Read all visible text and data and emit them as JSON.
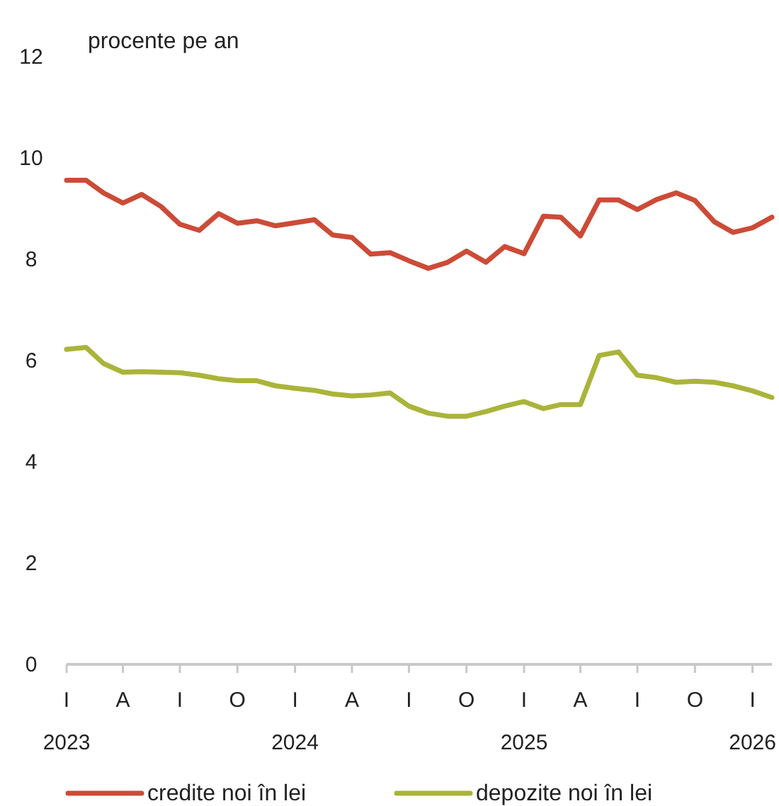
{
  "chart_data": {
    "type": "line",
    "ylabel": "procente pe an",
    "x": [
      "2023-01",
      "2023-02",
      "2023-03",
      "2023-04",
      "2023-05",
      "2023-06",
      "2023-07",
      "2023-08",
      "2023-09",
      "2023-10",
      "2023-11",
      "2023-12",
      "2024-01",
      "2024-02",
      "2024-03",
      "2024-04",
      "2024-05",
      "2024-06",
      "2024-07",
      "2024-08",
      "2024-09",
      "2024-10",
      "2024-11",
      "2024-12",
      "2025-01",
      "2025-02",
      "2025-03",
      "2025-04",
      "2025-05",
      "2025-06",
      "2025-07",
      "2025-08",
      "2025-09",
      "2025-10",
      "2025-11",
      "2025-12",
      "2026-01",
      "2026-02"
    ],
    "series": [
      {
        "name": "credite noi în lei",
        "color": "#cc4b37",
        "values": [
          9.56,
          9.56,
          9.31,
          9.11,
          9.28,
          9.04,
          8.69,
          8.57,
          8.9,
          8.71,
          8.76,
          8.66,
          8.72,
          8.78,
          8.48,
          8.43,
          8.1,
          8.13,
          7.97,
          7.82,
          7.94,
          8.16,
          7.94,
          8.25,
          8.11,
          8.85,
          8.83,
          8.46,
          9.17,
          9.17,
          8.98,
          9.18,
          9.31,
          9.16,
          8.74,
          8.53,
          8.62,
          8.83
        ]
      },
      {
        "name": "depozite noi în lei",
        "color": "#aab43a",
        "values": [
          6.22,
          6.26,
          5.94,
          5.77,
          5.78,
          5.77,
          5.76,
          5.71,
          5.64,
          5.6,
          5.6,
          5.5,
          5.45,
          5.41,
          5.34,
          5.3,
          5.32,
          5.36,
          5.1,
          4.96,
          4.9,
          4.9,
          4.99,
          5.1,
          5.19,
          5.05,
          5.13,
          5.13,
          6.1,
          6.17,
          5.71,
          5.66,
          5.57,
          5.59,
          5.57,
          5.5,
          5.4,
          5.27
        ]
      }
    ],
    "xlim": [
      "2023-01",
      "2026-02"
    ],
    "xticks": [
      {
        "value": "2023-01",
        "label": "I\n2023"
      },
      {
        "value": "2023-04",
        "label": "A"
      },
      {
        "value": "2023-07",
        "label": "I"
      },
      {
        "value": "2023-10",
        "label": "O"
      },
      {
        "value": "2024-01",
        "label": "I\n2024"
      },
      {
        "value": "2024-04",
        "label": "A"
      },
      {
        "value": "2024-07",
        "label": "I"
      },
      {
        "value": "2024-10",
        "label": "O"
      },
      {
        "value": "2025-01",
        "label": "I\n2025"
      },
      {
        "value": "2025-04",
        "label": "A"
      },
      {
        "value": "2025-07",
        "label": "I"
      },
      {
        "value": "2025-10",
        "label": "O"
      },
      {
        "value": "2026-01",
        "label": "I\n2026"
      }
    ],
    "ylim": [
      0,
      12
    ],
    "yticks": [
      0,
      2,
      4,
      6,
      8,
      10,
      12
    ],
    "grid": false,
    "legend": "bottom",
    "marker": "none",
    "line_style": "solid"
  }
}
